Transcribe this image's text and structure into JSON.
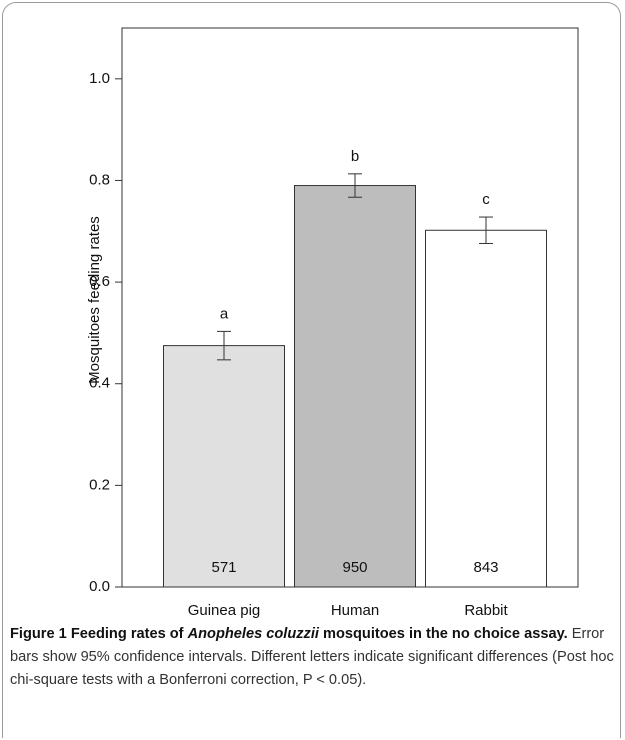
{
  "chart_data": {
    "type": "bar",
    "y_label": "Mosquitoes feeding rates",
    "categories": [
      "Guinea pig",
      "Human",
      "Rabbit"
    ],
    "values": [
      0.475,
      0.79,
      0.702
    ],
    "errors": [
      0.028,
      0.023,
      0.026
    ],
    "colors": [
      "#e0e0e0",
      "#bdbdbd",
      "#ffffff"
    ],
    "letters": [
      "a",
      "b",
      "c"
    ],
    "counts": [
      "571",
      "950",
      "843"
    ],
    "ylim": [
      0,
      1.1
    ],
    "yticks": [
      {
        "value": 0,
        "label": "0.0"
      },
      0.2,
      0.4,
      0.6,
      0.8,
      {
        "value": 1,
        "label": "1.0"
      }
    ]
  },
  "caption": {
    "title_start": "Figure 1 Feeding rates of ",
    "title_italic": "Anopheles coluzzii",
    "title_end": " mosquitoes in the no choice assay.",
    "text": "Error bars show 95% confidence intervals. Different letters indicate significant differences (Post hoc chi-square tests with a Bonferroni correction, P < 0.05)."
  }
}
